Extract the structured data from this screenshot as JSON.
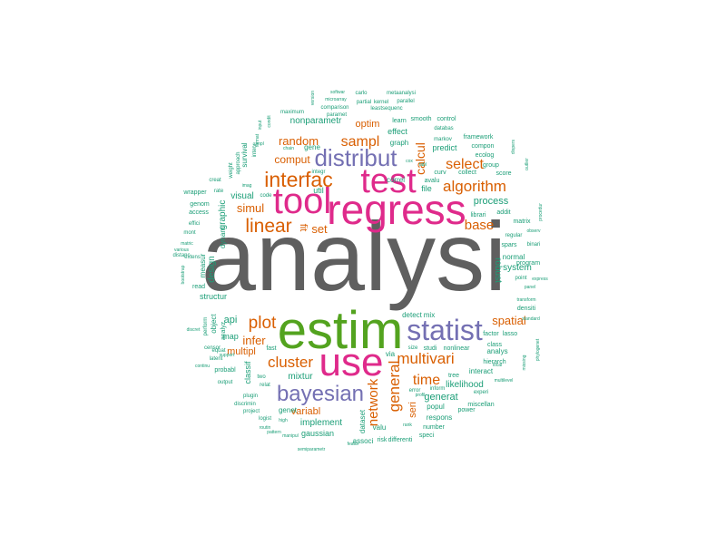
{
  "colors": {
    "gray": "#5f5f5f",
    "green": "#53a31f",
    "magenta": "#df2a8b",
    "purple": "#7470b3",
    "orange": "#d95f02",
    "teal": "#1b9e77"
  },
  "words": [
    {
      "text": "analysi",
      "color": "gray"
    },
    {
      "text": "estim",
      "color": "green"
    },
    {
      "text": "regress",
      "color": "magenta"
    },
    {
      "text": "use",
      "color": "magenta"
    },
    {
      "text": "tool",
      "color": "magenta"
    },
    {
      "text": "test",
      "color": "magenta"
    },
    {
      "text": "statist",
      "color": "purple"
    },
    {
      "text": "distribut",
      "color": "purple"
    },
    {
      "text": "bayesian",
      "color": "purple"
    },
    {
      "text": "interfac",
      "color": "orange"
    },
    {
      "text": "linear",
      "color": "orange"
    },
    {
      "text": "algorithm",
      "color": "orange"
    },
    {
      "text": "sampl",
      "color": "orange"
    },
    {
      "text": "select",
      "color": "orange"
    },
    {
      "text": "calcul",
      "color": "orange"
    },
    {
      "text": "plot",
      "color": "orange"
    },
    {
      "text": "cluster",
      "color": "orange"
    },
    {
      "text": "multivari",
      "color": "orange"
    },
    {
      "text": "general",
      "color": "orange"
    },
    {
      "text": "network",
      "color": "orange"
    },
    {
      "text": "time",
      "color": "orange"
    },
    {
      "text": "spatial",
      "color": "orange"
    },
    {
      "text": "base",
      "color": "orange"
    },
    {
      "text": "random",
      "color": "orange"
    },
    {
      "text": "comput",
      "color": "orange"
    },
    {
      "text": "simul",
      "color": "orange"
    },
    {
      "text": "infer",
      "color": "orange"
    },
    {
      "text": "set",
      "color": "orange"
    },
    {
      "text": "fit",
      "color": "orange"
    },
    {
      "text": "optim",
      "color": "orange"
    },
    {
      "text": "multipl",
      "color": "orange"
    },
    {
      "text": "variabl",
      "color": "orange"
    },
    {
      "text": "seri",
      "color": "orange"
    },
    {
      "text": "generat",
      "color": "teal"
    },
    {
      "text": "process",
      "color": "teal"
    },
    {
      "text": "robust",
      "color": "teal"
    },
    {
      "text": "likelihood",
      "color": "teal"
    },
    {
      "text": "mixtur",
      "color": "teal"
    },
    {
      "text": "api",
      "color": "teal"
    },
    {
      "text": "map",
      "color": "teal"
    },
    {
      "text": "design",
      "color": "teal"
    },
    {
      "text": "graphic",
      "color": "teal"
    },
    {
      "text": "visual",
      "color": "teal"
    },
    {
      "text": "nonparametr",
      "color": "teal"
    },
    {
      "text": "implement",
      "color": "teal"
    },
    {
      "text": "system",
      "color": "teal"
    },
    {
      "text": "structur",
      "color": "teal"
    },
    {
      "text": "util",
      "color": "teal"
    },
    {
      "text": "file",
      "color": "teal"
    },
    {
      "text": "effect",
      "color": "teal"
    },
    {
      "text": "graph",
      "color": "teal"
    },
    {
      "text": "predict",
      "color": "teal"
    },
    {
      "text": "gene",
      "color": "teal"
    },
    {
      "text": "correl",
      "color": "teal"
    },
    {
      "text": "interact",
      "color": "teal"
    },
    {
      "text": "gaussian",
      "color": "teal"
    },
    {
      "text": "dataset",
      "color": "teal"
    },
    {
      "text": "classif",
      "color": "teal"
    },
    {
      "text": "object",
      "color": "teal"
    },
    {
      "text": "dynam",
      "color": "teal"
    },
    {
      "text": "measur",
      "color": "teal"
    },
    {
      "text": "normal",
      "color": "teal"
    },
    {
      "text": "program",
      "color": "teal"
    },
    {
      "text": "analys",
      "color": "teal"
    },
    {
      "text": "popul",
      "color": "teal"
    },
    {
      "text": "respons",
      "color": "teal"
    },
    {
      "text": "valu",
      "color": "teal"
    },
    {
      "text": "genet",
      "color": "teal"
    },
    {
      "text": "mix",
      "color": "teal"
    },
    {
      "text": "detect",
      "color": "teal"
    },
    {
      "text": "via",
      "color": "teal"
    },
    {
      "text": "associ",
      "color": "teal"
    },
    {
      "text": "risk",
      "color": "teal"
    },
    {
      "text": "differenti",
      "color": "teal"
    },
    {
      "text": "survival",
      "color": "teal"
    },
    {
      "text": "smooth",
      "color": "teal"
    },
    {
      "text": "learn",
      "color": "teal"
    },
    {
      "text": "control",
      "color": "teal"
    },
    {
      "text": "framework",
      "color": "teal"
    },
    {
      "text": "compon",
      "color": "teal"
    },
    {
      "text": "ecolog",
      "color": "teal"
    },
    {
      "text": "group",
      "color": "teal"
    },
    {
      "text": "score",
      "color": "teal"
    },
    {
      "text": "collect",
      "color": "teal"
    },
    {
      "text": "curv",
      "color": "teal"
    },
    {
      "text": "avalu",
      "color": "teal"
    },
    {
      "text": "addit",
      "color": "teal"
    },
    {
      "text": "librari",
      "color": "teal"
    },
    {
      "text": "matrix",
      "color": "teal"
    },
    {
      "text": "regular",
      "color": "teal"
    },
    {
      "text": "spars",
      "color": "teal"
    },
    {
      "text": "binari",
      "color": "teal"
    },
    {
      "text": "densiti",
      "color": "teal"
    },
    {
      "text": "lasso",
      "color": "teal"
    },
    {
      "text": "factor",
      "color": "teal"
    },
    {
      "text": "class",
      "color": "teal"
    },
    {
      "text": "hierarch",
      "color": "teal"
    },
    {
      "text": "tree",
      "color": "teal"
    },
    {
      "text": "inform",
      "color": "teal"
    },
    {
      "text": "experi",
      "color": "teal"
    },
    {
      "text": "miscellan",
      "color": "teal"
    },
    {
      "text": "power",
      "color": "teal"
    },
    {
      "text": "number",
      "color": "teal"
    },
    {
      "text": "speci",
      "color": "teal"
    },
    {
      "text": "error",
      "color": "teal"
    },
    {
      "text": "nonlinear",
      "color": "teal"
    },
    {
      "text": "studi",
      "color": "teal"
    },
    {
      "text": "size",
      "color": "teal"
    },
    {
      "text": "plugin",
      "color": "teal"
    },
    {
      "text": "relat",
      "color": "teal"
    },
    {
      "text": "two",
      "color": "teal"
    },
    {
      "text": "fast",
      "color": "teal"
    },
    {
      "text": "equat",
      "color": "teal"
    },
    {
      "text": "latent",
      "color": "teal"
    },
    {
      "text": "probabl",
      "color": "teal"
    },
    {
      "text": "output",
      "color": "teal"
    },
    {
      "text": "discrimin",
      "color": "teal"
    },
    {
      "text": "project",
      "color": "teal"
    },
    {
      "text": "logist",
      "color": "teal"
    },
    {
      "text": "pattern",
      "color": "teal"
    },
    {
      "text": "censor",
      "color": "teal"
    },
    {
      "text": "perform",
      "color": "teal"
    },
    {
      "text": "analyz",
      "color": "teal"
    },
    {
      "text": "interv",
      "color": "teal"
    },
    {
      "text": "weight",
      "color": "teal"
    },
    {
      "text": "approach",
      "color": "teal"
    },
    {
      "text": "code",
      "color": "teal"
    },
    {
      "text": "access",
      "color": "teal"
    },
    {
      "text": "genom",
      "color": "teal"
    },
    {
      "text": "wrapper",
      "color": "teal"
    },
    {
      "text": "rate",
      "color": "teal"
    },
    {
      "text": "creat",
      "color": "teal"
    },
    {
      "text": "effici",
      "color": "teal"
    },
    {
      "text": "mont",
      "color": "teal"
    },
    {
      "text": "extens",
      "color": "teal"
    },
    {
      "text": "distanc",
      "color": "teal"
    },
    {
      "text": "read",
      "color": "teal"
    },
    {
      "text": "maximum",
      "color": "teal"
    },
    {
      "text": "comparison",
      "color": "teal"
    },
    {
      "text": "paramet",
      "color": "teal"
    },
    {
      "text": "leastsequenc",
      "color": "teal"
    },
    {
      "text": "partial",
      "color": "teal"
    },
    {
      "text": "kernel",
      "color": "teal"
    },
    {
      "text": "parallel",
      "color": "teal"
    },
    {
      "text": "metaanalysi",
      "color": "teal"
    },
    {
      "text": "carlo",
      "color": "teal"
    },
    {
      "text": "microarray",
      "color": "teal"
    },
    {
      "text": "databas",
      "color": "teal"
    },
    {
      "text": "markov",
      "color": "teal"
    },
    {
      "text": "integr",
      "color": "teal"
    },
    {
      "text": "imag",
      "color": "teal"
    },
    {
      "text": "softwar",
      "color": "teal"
    },
    {
      "text": "version",
      "color": "teal"
    },
    {
      "text": "chain",
      "color": "teal"
    },
    {
      "text": "format",
      "color": "teal"
    },
    {
      "text": "simpl",
      "color": "teal"
    },
    {
      "text": "condit",
      "color": "teal"
    },
    {
      "text": "input",
      "color": "teal"
    },
    {
      "text": "bootstrap",
      "color": "teal"
    },
    {
      "text": "discret",
      "color": "teal"
    },
    {
      "text": "continu",
      "color": "teal"
    },
    {
      "text": "support",
      "color": "teal"
    },
    {
      "text": "matric",
      "color": "teal"
    },
    {
      "text": "various",
      "color": "teal"
    },
    {
      "text": "high",
      "color": "teal"
    },
    {
      "text": "rank",
      "color": "teal"
    },
    {
      "text": "semiparametr",
      "color": "teal"
    },
    {
      "text": "featur",
      "color": "teal"
    },
    {
      "text": "manipul",
      "color": "teal"
    },
    {
      "text": "transform",
      "color": "teal"
    },
    {
      "text": "express",
      "color": "teal"
    },
    {
      "text": "point",
      "color": "teal"
    },
    {
      "text": "panel",
      "color": "teal"
    },
    {
      "text": "standard",
      "color": "teal"
    },
    {
      "text": "procedur",
      "color": "teal"
    },
    {
      "text": "observ",
      "color": "teal"
    },
    {
      "text": "phylogenet",
      "color": "teal"
    },
    {
      "text": "missing",
      "color": "teal"
    },
    {
      "text": "profil",
      "color": "teal"
    },
    {
      "text": "local",
      "color": "teal"
    },
    {
      "text": "cox",
      "color": "teal"
    },
    {
      "text": "tabl",
      "color": "teal"
    },
    {
      "text": "multilevel",
      "color": "teal"
    },
    {
      "text": "outlier",
      "color": "teal"
    },
    {
      "text": "dispers",
      "color": "teal"
    },
    {
      "text": "routin",
      "color": "teal"
    }
  ]
}
